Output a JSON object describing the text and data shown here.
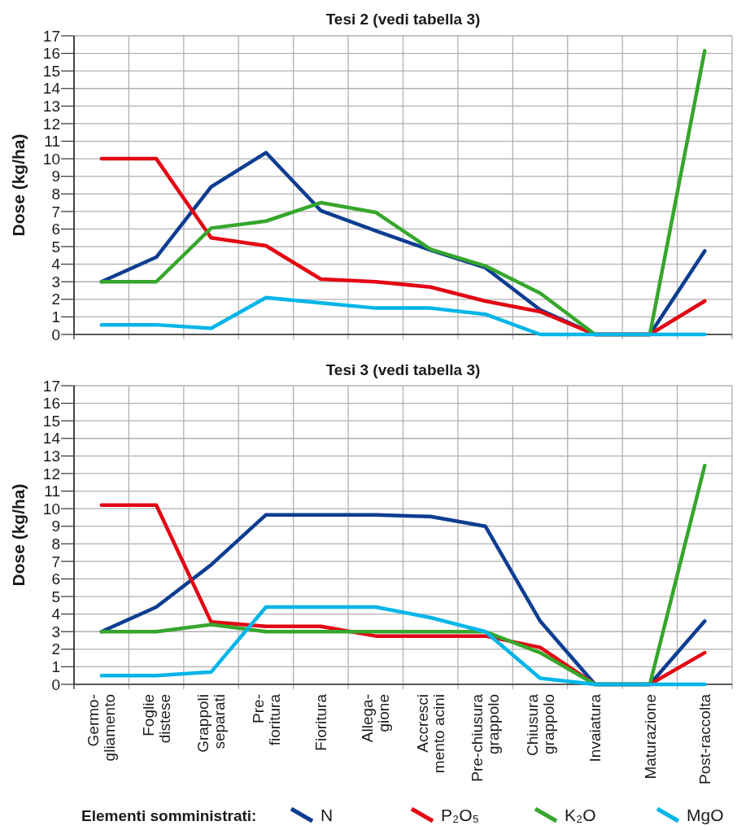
{
  "chart_data": [
    {
      "type": "line",
      "title": "Tesi 2 (vedi tabella 3)",
      "ylabel": "Dose (kg/ha)",
      "categories": [
        null,
        null,
        null,
        null,
        null,
        null,
        null,
        null,
        null,
        null,
        null,
        null
      ],
      "series": [
        {
          "color": "#0d3d91",
          "values": [
            3,
            4.4,
            8.4,
            10.35,
            7.05,
            5.9,
            4.8,
            3.8,
            1.4,
            0,
            0,
            4.75
          ]
        },
        {
          "color": "#e30613",
          "values": [
            10,
            10,
            5.5,
            5.05,
            3.15,
            3,
            2.7,
            1.9,
            1.3,
            0,
            0,
            1.9
          ]
        },
        {
          "color": "#36a62c",
          "values": [
            3,
            3,
            6.05,
            6.45,
            7.5,
            6.95,
            4.85,
            3.9,
            2.35,
            0,
            0,
            16.15
          ]
        },
        {
          "color": "#00b5e8",
          "values": [
            0.55,
            0.55,
            0.35,
            2.1,
            1.8,
            1.5,
            1.5,
            1.15,
            0,
            0,
            0,
            0
          ]
        }
      ],
      "ylim": [
        0,
        17
      ],
      "yticks": [
        0,
        1,
        2,
        3,
        4,
        5,
        6,
        7,
        8,
        9,
        10,
        11,
        12,
        13,
        14,
        15,
        16,
        17
      ],
      "grid": true,
      "tick_labels": "y",
      "marker": "none",
      "line_style": "solid"
    },
    {
      "type": "line",
      "title": "Tesi 3 (vedi tabella 3)",
      "ylabel": "Dose (kg/ha)",
      "legend_title": "Elementi somministrati:",
      "categories": [
        "Germo-\ngliamento",
        "Foglie\ndistese",
        "Grappoli\nseparati",
        "Pre-\nfioritura",
        "Fioritura",
        "Allega-\ngione",
        "Accresci\nmento acini",
        "Pre-chiusura\ngrappolo",
        "Chiusura\ngrappolo",
        "Invaiatura",
        "Maturazione",
        "Post-raccolta"
      ],
      "series": [
        {
          "name": "N",
          "color": "#0d3d91",
          "values": [
            3,
            4.4,
            6.8,
            9.65,
            9.65,
            9.65,
            9.55,
            9,
            3.6,
            0,
            0,
            3.6
          ]
        },
        {
          "name": "P₂O₅",
          "color": "#e30613",
          "values": [
            10.2,
            10.2,
            3.55,
            3.3,
            3.3,
            2.75,
            2.75,
            2.75,
            2.1,
            0,
            0,
            1.8
          ]
        },
        {
          "name": "K₂O",
          "color": "#36a62c",
          "values": [
            3,
            3,
            3.4,
            3,
            3,
            3,
            3,
            3,
            1.8,
            0,
            0,
            12.45
          ]
        },
        {
          "name": "MgO",
          "color": "#00b5e8",
          "values": [
            0.5,
            0.5,
            0.7,
            4.4,
            4.4,
            4.4,
            3.8,
            3,
            0.35,
            0,
            0,
            0
          ]
        }
      ],
      "ylim": [
        0,
        17
      ],
      "yticks": [
        0,
        1,
        2,
        3,
        4,
        5,
        6,
        7,
        8,
        9,
        10,
        11,
        12,
        13,
        14,
        15,
        16,
        17
      ],
      "grid": true,
      "legend": "bottom",
      "marker": "none",
      "line_style": "solid"
    }
  ]
}
